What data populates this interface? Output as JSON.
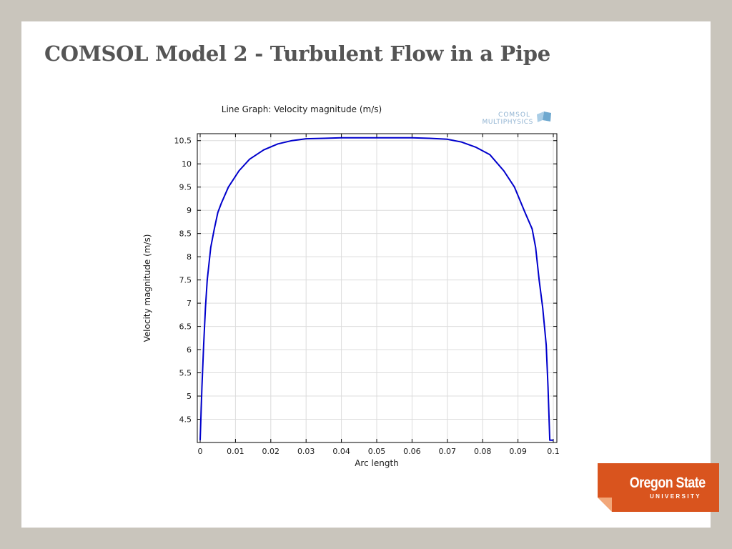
{
  "slide": {
    "title": "COMSOL Model 2 - Turbulent Flow in a Pipe"
  },
  "logos": {
    "comsol": {
      "line1": "COMSOL",
      "line2": "MULTIPHYSICS"
    },
    "osu": {
      "name": "Oregon State",
      "sub": "UNIVERSITY",
      "color": "#d9541e"
    }
  },
  "chart_data": {
    "type": "line",
    "title": "Line Graph: Velocity magnitude (m/s)",
    "xlabel": "Arc length",
    "ylabel": "Velocity magnitude (m/s)",
    "xlim": [
      0,
      0.1
    ],
    "ylim": [
      4.0,
      10.65
    ],
    "xticks": [
      "0",
      "0.01",
      "0.02",
      "0.03",
      "0.04",
      "0.05",
      "0.06",
      "0.07",
      "0.08",
      "0.09",
      "0.1"
    ],
    "yticks": [
      "4.5",
      "5",
      "5.5",
      "6",
      "6.5",
      "7",
      "7.5",
      "8",
      "8.5",
      "9",
      "9.5",
      "10",
      "10.5"
    ],
    "grid": true,
    "series": [
      {
        "color": "#0000cc",
        "x": [
          0.0,
          0.0005,
          0.001,
          0.0015,
          0.002,
          0.003,
          0.004,
          0.005,
          0.006,
          0.008,
          0.011,
          0.014,
          0.018,
          0.022,
          0.026,
          0.03,
          0.035,
          0.04,
          0.045,
          0.05,
          0.055,
          0.06,
          0.065,
          0.07,
          0.074,
          0.078,
          0.082,
          0.086,
          0.089,
          0.092,
          0.094,
          0.095,
          0.096,
          0.097,
          0.098,
          0.0985,
          0.099,
          0.0995,
          0.1
        ],
        "y": [
          4.05,
          5.2,
          6.1,
          6.9,
          7.5,
          8.2,
          8.6,
          8.95,
          9.15,
          9.5,
          9.85,
          10.1,
          10.3,
          10.43,
          10.5,
          10.54,
          10.55,
          10.56,
          10.56,
          10.56,
          10.56,
          10.56,
          10.55,
          10.53,
          10.47,
          10.36,
          10.2,
          9.85,
          9.5,
          8.95,
          8.6,
          8.2,
          7.5,
          6.9,
          6.1,
          5.2,
          4.05,
          4.05,
          4.05
        ]
      }
    ]
  }
}
